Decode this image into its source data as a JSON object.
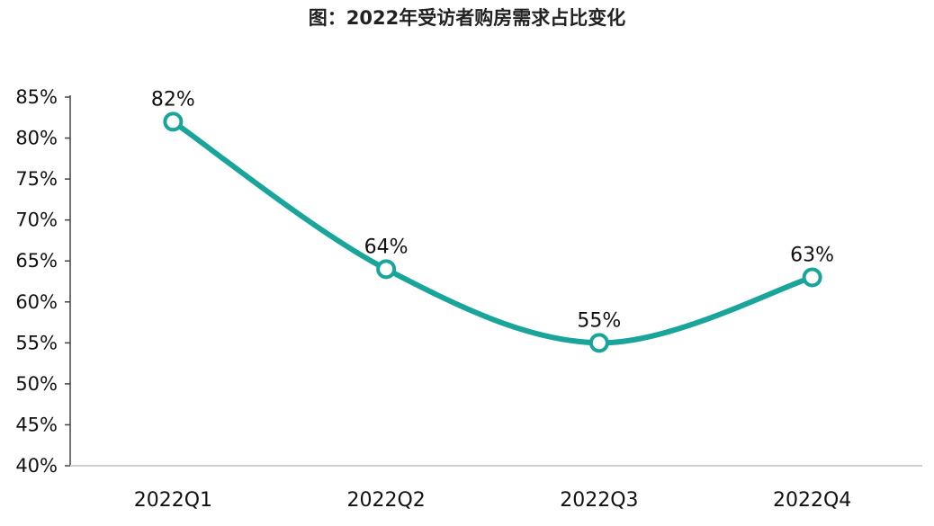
{
  "chart_data": {
    "type": "line",
    "title": "图：2022年受访者购房需求占比变化",
    "xlabel": "",
    "ylabel": "",
    "categories": [
      "2022Q1",
      "2022Q2",
      "2022Q3",
      "2022Q4"
    ],
    "series": [
      {
        "values": [
          82,
          64,
          55,
          63
        ],
        "data_labels": [
          "82%",
          "64%",
          "55%",
          "63%"
        ],
        "color": "#1aa59a"
      }
    ],
    "ylim": [
      40,
      85
    ],
    "yticks": [
      40,
      45,
      50,
      55,
      60,
      65,
      70,
      75,
      80,
      85
    ],
    "ytick_labels": [
      "40%",
      "45%",
      "50%",
      "55%",
      "60%",
      "65%",
      "70%",
      "75%",
      "80%",
      "85%"
    ],
    "grid": false,
    "legend": "none",
    "smooth": true
  }
}
